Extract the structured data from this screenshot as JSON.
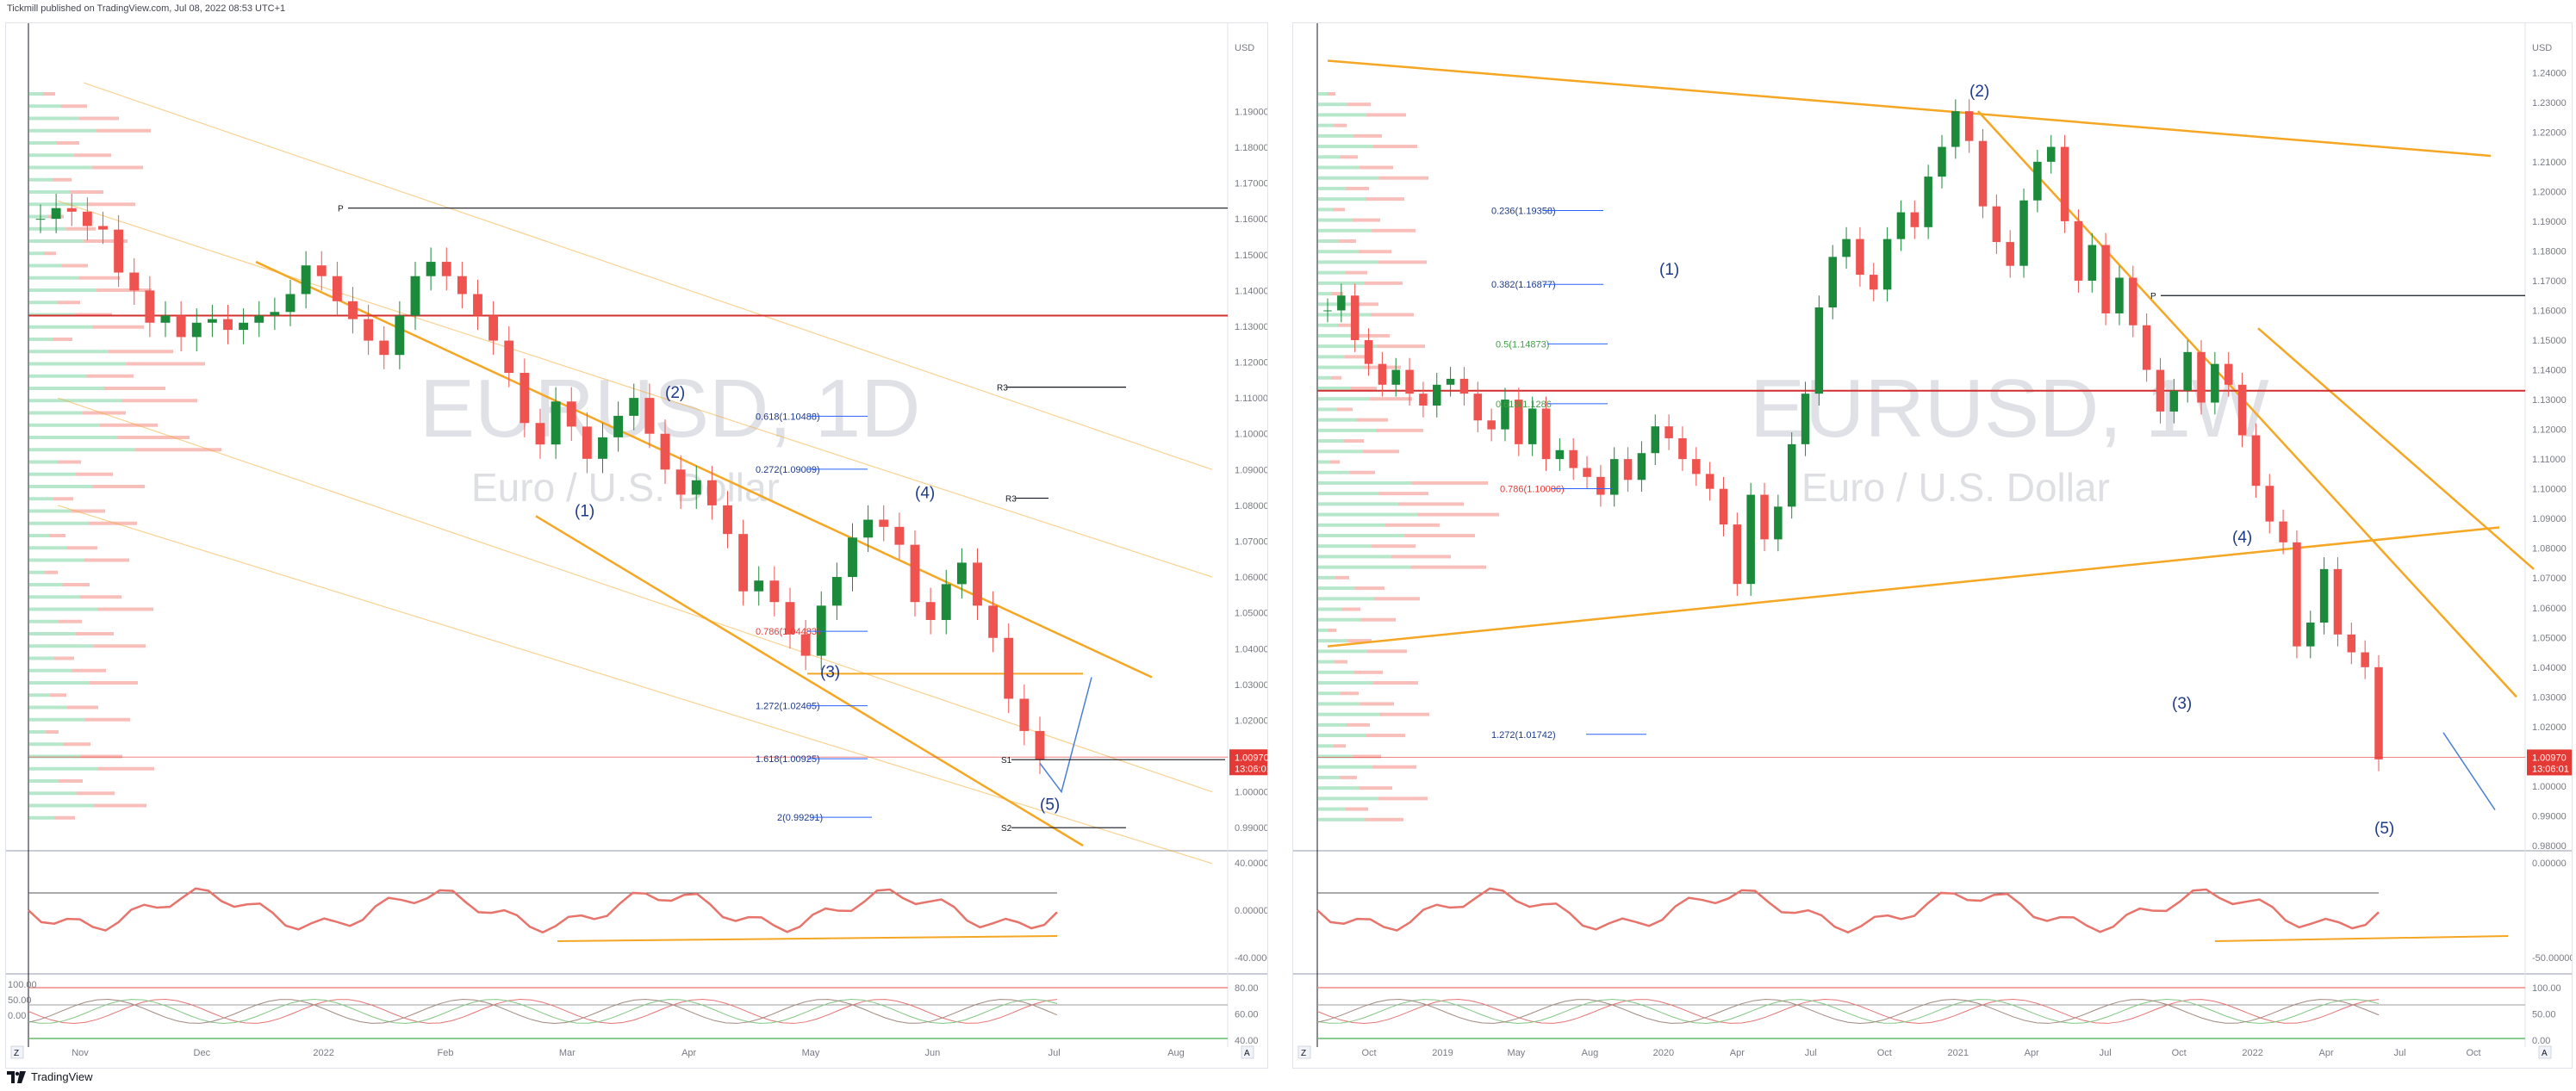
{
  "header": {
    "publisher": "Tickmill published on TradingView.com, Jul 08, 2022 08:53 UTC+1"
  },
  "footer": {
    "brand": "TradingView"
  },
  "colors": {
    "bull": "#1b8a3a",
    "bear": "#ef5350",
    "channel": "#f5a623",
    "fib_line": "#2962ff",
    "projection": "#4a7fd8",
    "priceTag": "#e53935",
    "pivotLine": "#131722"
  },
  "chart_data": [
    {
      "type": "candlestick",
      "title": "EURUSD, 1D",
      "subtitle": "Euro / U.S. Dollar",
      "y_unit": "USD",
      "ylim": [
        0.985,
        1.205
      ],
      "y_ticks": [
        "1.19000",
        "1.18000",
        "1.17000",
        "1.16000",
        "1.15000",
        "1.14000",
        "1.13000",
        "1.12000",
        "1.11000",
        "1.10000",
        "1.09000",
        "1.08000",
        "1.07000",
        "1.06000",
        "1.05000",
        "1.04000",
        "1.03000",
        "1.02000",
        "1.01000",
        "1.00000",
        "0.99000"
      ],
      "x_ticks": [
        "Nov",
        "Dec",
        "2022",
        "Feb",
        "Mar",
        "Apr",
        "May",
        "Jun",
        "Jul",
        "Aug"
      ],
      "last_price": "1.00970",
      "countdown": "13:06:01",
      "price_series_approx": [
        1.16,
        1.163,
        1.162,
        1.158,
        1.157,
        1.145,
        1.14,
        1.131,
        1.133,
        1.127,
        1.131,
        1.132,
        1.129,
        1.131,
        1.133,
        1.134,
        1.139,
        1.147,
        1.144,
        1.137,
        1.132,
        1.126,
        1.122,
        1.133,
        1.144,
        1.148,
        1.144,
        1.139,
        1.133,
        1.126,
        1.117,
        1.103,
        1.097,
        1.109,
        1.102,
        1.093,
        1.099,
        1.105,
        1.11,
        1.1,
        1.09,
        1.083,
        1.087,
        1.08,
        1.072,
        1.056,
        1.059,
        1.053,
        1.044,
        1.038,
        1.052,
        1.06,
        1.071,
        1.076,
        1.074,
        1.069,
        1.053,
        1.048,
        1.058,
        1.064,
        1.052,
        1.043,
        1.026,
        1.017,
        1.009
      ],
      "elliott_waves": [
        "(1)",
        "(2)",
        "(3)",
        "(4)",
        "(5)"
      ],
      "fib_levels": [
        "0.618(1.10488)",
        "0.272(1.09009)",
        "0.786(1.04483)",
        "1.272(1.02405)",
        "1.618(1.00925)",
        "2(0.99291)"
      ],
      "pivots": [
        "P",
        "R3",
        "R3",
        "S1",
        "S2"
      ],
      "oscillator1": {
        "ticks": [
          "40.00000",
          "0.00000",
          "-40.00000"
        ]
      },
      "oscillator2": {
        "ticks": [
          "80.00",
          "60.00",
          "40.00"
        ]
      },
      "left_axis_ticks": [
        "100.00",
        "50.00",
        "0.00"
      ],
      "badges": [
        "Z",
        "A"
      ]
    },
    {
      "type": "candlestick",
      "title": "EURUSD, 1W",
      "subtitle": "Euro / U.S. Dollar",
      "y_unit": "USD",
      "ylim": [
        0.98,
        1.245
      ],
      "y_ticks": [
        "1.24000",
        "1.23000",
        "1.22000",
        "1.21000",
        "1.20000",
        "1.19000",
        "1.18000",
        "1.17000",
        "1.16000",
        "1.15000",
        "1.14000",
        "1.13000",
        "1.12000",
        "1.11000",
        "1.10000",
        "1.09000",
        "1.08000",
        "1.07000",
        "1.06000",
        "1.05000",
        "1.04000",
        "1.03000",
        "1.02000",
        "1.01000",
        "1.00000",
        "0.99000",
        "0.98000"
      ],
      "x_ticks": [
        "Oct",
        "2019",
        "May",
        "Aug",
        "2020",
        "Apr",
        "Jul",
        "Oct",
        "2021",
        "Apr",
        "Jul",
        "Oct",
        "2022",
        "Apr",
        "Jul",
        "Oct"
      ],
      "last_price": "1.00970",
      "countdown": "13:06:01",
      "price_series_approx": [
        1.16,
        1.165,
        1.15,
        1.142,
        1.135,
        1.14,
        1.132,
        1.128,
        1.135,
        1.137,
        1.132,
        1.123,
        1.12,
        1.13,
        1.115,
        1.127,
        1.11,
        1.113,
        1.107,
        1.104,
        1.098,
        1.11,
        1.103,
        1.112,
        1.121,
        1.117,
        1.11,
        1.105,
        1.1,
        1.088,
        1.068,
        1.098,
        1.083,
        1.094,
        1.115,
        1.132,
        1.161,
        1.178,
        1.184,
        1.172,
        1.167,
        1.184,
        1.193,
        1.188,
        1.205,
        1.215,
        1.227,
        1.217,
        1.195,
        1.183,
        1.175,
        1.197,
        1.21,
        1.215,
        1.19,
        1.17,
        1.182,
        1.159,
        1.171,
        1.155,
        1.14,
        1.126,
        1.133,
        1.146,
        1.129,
        1.142,
        1.135,
        1.118,
        1.101,
        1.089,
        1.082,
        1.047,
        1.055,
        1.073,
        1.051,
        1.045,
        1.04,
        1.009
      ],
      "elliott_waves": [
        "(1)",
        "(2)",
        "(3)",
        "(4)",
        "(5)"
      ],
      "fib_levels": [
        "0.236(1.19358)",
        "0.382(1.16877)",
        "0.5(1.14873)",
        "0.618(1.1286",
        "0.786(1.10006)",
        "1.272(1.01742)"
      ],
      "pivots": [
        "P"
      ],
      "oscillator1": {
        "ticks": [
          "0.00000",
          "-50.00000"
        ]
      },
      "oscillator2": {
        "ticks": [
          "100.00",
          "50.00",
          "0.00"
        ]
      },
      "badges": [
        "Z",
        "A"
      ]
    }
  ]
}
